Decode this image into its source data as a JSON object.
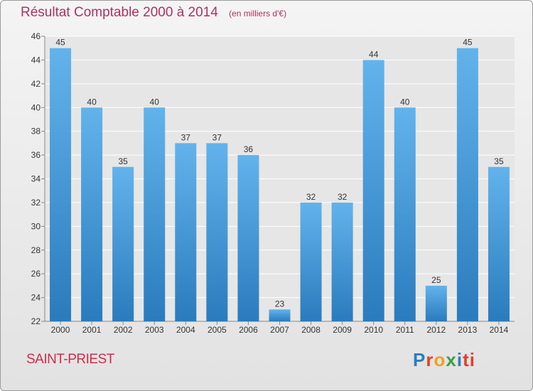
{
  "header": {
    "title": "Résultat Comptable 2000 à 2014",
    "unit": "(en milliers d'€)"
  },
  "footer": {
    "place": "SAINT-PRIEST",
    "logo": [
      "P",
      "r",
      "o",
      "x",
      "i",
      "ti"
    ]
  },
  "colors": {
    "bar": "#3d93d6",
    "bar_light": "#62b3ec",
    "title": "#b03060",
    "grid": "#ffffff"
  },
  "chart_data": {
    "type": "bar",
    "title": "Résultat Comptable 2000 à 2014",
    "subtitle": "(en milliers d'€)",
    "categories": [
      "2000",
      "2001",
      "2002",
      "2003",
      "2004",
      "2005",
      "2006",
      "2007",
      "2008",
      "2009",
      "2010",
      "2011",
      "2012",
      "2013",
      "2014"
    ],
    "values": [
      45,
      40,
      35,
      40,
      37,
      37,
      36,
      23,
      32,
      32,
      44,
      40,
      25,
      45,
      35
    ],
    "ylim": [
      22,
      46
    ],
    "yticks": [
      22,
      24,
      26,
      28,
      30,
      32,
      34,
      36,
      38,
      40,
      42,
      44,
      46
    ],
    "grid": true,
    "data_labels": true
  }
}
